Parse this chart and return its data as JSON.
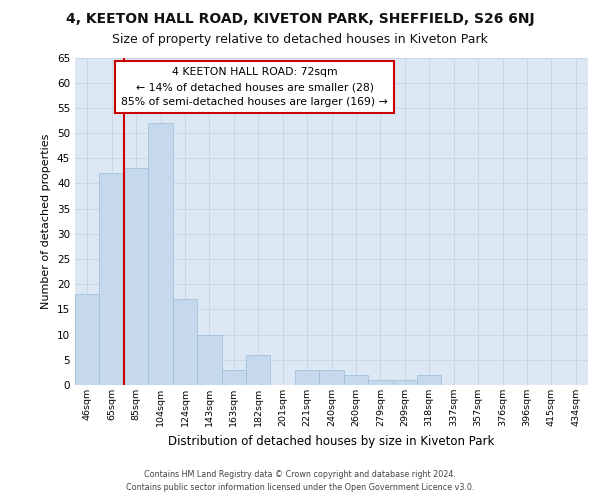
{
  "title1": "4, KEETON HALL ROAD, KIVETON PARK, SHEFFIELD, S26 6NJ",
  "title2": "Size of property relative to detached houses in Kiveton Park",
  "xlabel": "Distribution of detached houses by size in Kiveton Park",
  "ylabel": "Number of detached properties",
  "categories": [
    "46sqm",
    "65sqm",
    "85sqm",
    "104sqm",
    "124sqm",
    "143sqm",
    "163sqm",
    "182sqm",
    "201sqm",
    "221sqm",
    "240sqm",
    "260sqm",
    "279sqm",
    "299sqm",
    "318sqm",
    "337sqm",
    "357sqm",
    "376sqm",
    "396sqm",
    "415sqm",
    "434sqm"
  ],
  "values": [
    18,
    42,
    43,
    52,
    17,
    10,
    3,
    6,
    0,
    3,
    3,
    2,
    1,
    1,
    2,
    0,
    0,
    0,
    0,
    0,
    0
  ],
  "bar_color": "#c5d8ec",
  "bar_edge_color": "#9bbdd8",
  "vline_index": 1.5,
  "vline_color": "#cc0000",
  "annotation_line1": "4 KEETON HALL ROAD: 72sqm",
  "annotation_line2": "← 14% of detached houses are smaller (28)",
  "annotation_line3": "85% of semi-detached houses are larger (169) →",
  "annotation_box_color": "#ffffff",
  "annotation_box_edge_color": "#cc0000",
  "ylim_max": 65,
  "yticks": [
    0,
    5,
    10,
    15,
    20,
    25,
    30,
    35,
    40,
    45,
    50,
    55,
    60,
    65
  ],
  "grid_color": "#c8d8e8",
  "bg_color": "#dce8f4",
  "footer1": "Contains HM Land Registry data © Crown copyright and database right 2024.",
  "footer2": "Contains public sector information licensed under the Open Government Licence v3.0."
}
